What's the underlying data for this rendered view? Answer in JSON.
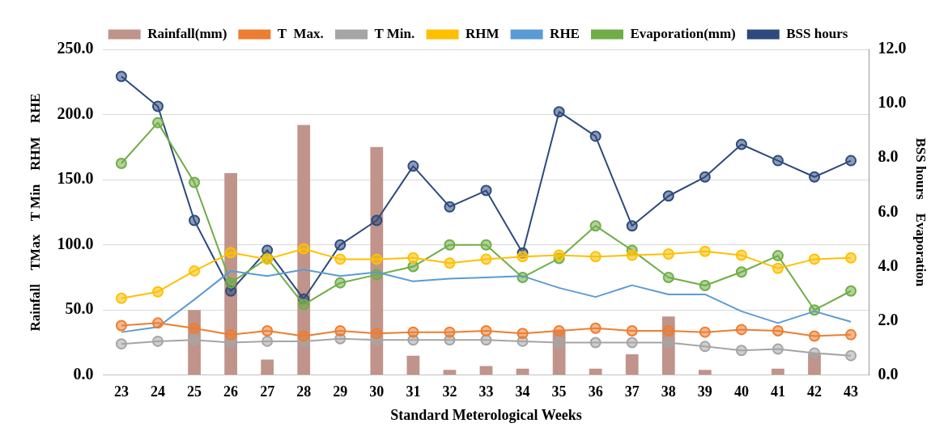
{
  "chart_data": {
    "type": "line",
    "xlabel": "Standard Meterological Weeks",
    "ylabel": "Rainfall    TMax    T Min    RHM    RHE",
    "y2label": "BSS hours    Evaporation",
    "categories": [
      "23",
      "24",
      "25",
      "26",
      "27",
      "28",
      "29",
      "30",
      "31",
      "32",
      "33",
      "34",
      "35",
      "36",
      "37",
      "38",
      "39",
      "40",
      "41",
      "42",
      "43"
    ],
    "series": [
      {
        "name": "Rainfall(mm)",
        "type": "bar",
        "color": "#c0948a",
        "values": [
          0,
          0,
          50,
          155,
          12,
          192,
          0,
          175,
          15,
          4,
          7,
          5,
          35,
          5,
          16,
          45,
          4,
          0,
          5,
          17,
          0
        ]
      },
      {
        "name": "T  Max.",
        "color": "#ed7d31",
        "values": [
          38,
          40,
          36,
          31,
          34,
          30,
          34,
          32,
          33,
          33,
          34,
          32,
          34,
          36,
          34,
          34,
          33,
          35,
          34,
          30,
          31
        ]
      },
      {
        "name": "T Min.",
        "color": "#a5a5a5",
        "values": [
          24,
          26,
          27,
          25,
          26,
          26,
          28,
          27,
          27,
          27,
          27,
          26,
          25,
          25,
          25,
          25,
          22,
          19,
          20,
          17,
          15
        ]
      },
      {
        "name": "RHM",
        "color": "#ffc000",
        "values": [
          59,
          64,
          80,
          94,
          89,
          97,
          89,
          89,
          90,
          86,
          89,
          91,
          92,
          91,
          92,
          93,
          95,
          92,
          82,
          89,
          90
        ]
      },
      {
        "name": "RHE",
        "color": "#5b9bd5",
        "marker": "none",
        "values": [
          33,
          37,
          58,
          80,
          76,
          81,
          76,
          79,
          72,
          74,
          75,
          76,
          67,
          60,
          69,
          62,
          62,
          49,
          40,
          49,
          41
        ]
      },
      {
        "name": "Evaporation(mm)",
        "color": "#70ad47",
        "axis": "y2",
        "values": [
          7.8,
          9.3,
          7.1,
          3.4,
          4.3,
          2.6,
          3.4,
          3.7,
          4.0,
          4.8,
          4.8,
          3.6,
          4.3,
          5.5,
          4.6,
          3.6,
          3.3,
          3.8,
          4.4,
          2.4,
          3.1
        ]
      },
      {
        "name": "BSS hours",
        "color": "#2e4a7d",
        "axis": "y2",
        "values": [
          11.0,
          9.9,
          5.7,
          3.1,
          4.6,
          2.8,
          4.8,
          5.7,
          7.7,
          6.2,
          6.8,
          4.5,
          9.7,
          8.8,
          5.5,
          6.6,
          7.3,
          8.5,
          7.9,
          7.3,
          7.9
        ]
      }
    ],
    "ylim": [
      0,
      250
    ],
    "yticks": [
      {
        "value": 0,
        "label": "0.0"
      },
      {
        "value": 50,
        "label": "50.0"
      },
      {
        "value": 100,
        "label": "100.0"
      },
      {
        "value": 150,
        "label": "150.0"
      },
      {
        "value": 200,
        "label": "200.0"
      },
      {
        "value": 250,
        "label": "250.0"
      }
    ],
    "y2lim": [
      0,
      12
    ],
    "y2ticks": [
      {
        "value": 0,
        "label": "0.0"
      },
      {
        "value": 2,
        "label": "2.0"
      },
      {
        "value": 4,
        "label": "4.0"
      },
      {
        "value": 6,
        "label": "6.0"
      },
      {
        "value": 8,
        "label": "8.0"
      },
      {
        "value": 10,
        "label": "10.0"
      },
      {
        "value": 12,
        "label": "12.0"
      }
    ],
    "grid": "y",
    "legend": "top",
    "marker": "circle",
    "line_style": "solid"
  }
}
